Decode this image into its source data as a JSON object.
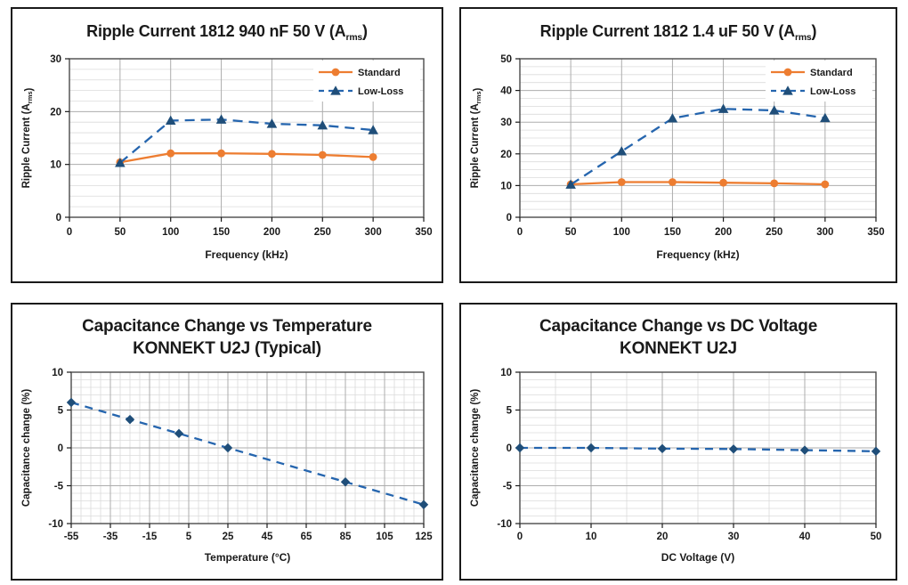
{
  "page": {
    "background": "#ffffff"
  },
  "colors": {
    "text": "#1a1a1a",
    "panel_border": "#1a1a1a",
    "grid_minor": "#dbdbdb",
    "grid_major": "#adadad",
    "plot_border": "#4a4a4a",
    "standard_orange": "#ED7D31",
    "lowloss_blue_line": "#2565AE",
    "lowloss_blue_marker": "#1F4E79",
    "diamond_navy": "#1F4E79"
  },
  "chart_data": [
    {
      "id": "ripple-current-940nf",
      "type": "line",
      "title_lines": [
        [
          {
            "t": "Ripple Current 1812 940 nF 50 V (A"
          },
          {
            "t": "rms",
            "sub": true
          },
          {
            "t": ")"
          }
        ]
      ],
      "xlabel": "Frequency (kHz)",
      "ylabel_segments": [
        {
          "t": "Ripple Current (A"
        },
        {
          "t": "rms",
          "sub": true
        },
        {
          "t": ")"
        }
      ],
      "xlim": [
        0,
        350
      ],
      "ylim": [
        0,
        30
      ],
      "xticks": [
        0,
        50,
        100,
        150,
        200,
        250,
        300,
        350
      ],
      "yticks": [
        0,
        10,
        20,
        30
      ],
      "x_minor_step": null,
      "y_minor_step": 2,
      "grid": true,
      "legend": true,
      "legend_position": "top-right",
      "x": [
        50,
        100,
        150,
        200,
        250,
        300
      ],
      "series": [
        {
          "name": "Standard",
          "values": [
            10.4,
            12.1,
            12.1,
            12.0,
            11.8,
            11.4
          ],
          "color": "#ED7D31",
          "marker": "circle",
          "marker_color": "#ED7D31",
          "dash": null
        },
        {
          "name": "Low-Loss",
          "values": [
            10.3,
            18.3,
            18.5,
            17.7,
            17.4,
            16.5
          ],
          "color": "#2565AE",
          "marker": "triangle",
          "marker_color": "#1F4E79",
          "dash": "11 7"
        }
      ]
    },
    {
      "id": "ripple-current-1p4uf",
      "type": "line",
      "title_lines": [
        [
          {
            "t": "Ripple Current 1812 1.4 uF 50 V (A"
          },
          {
            "t": "rms",
            "sub": true
          },
          {
            "t": ")"
          }
        ]
      ],
      "xlabel": "Frequency (kHz)",
      "ylabel_segments": [
        {
          "t": "Ripple Current (A"
        },
        {
          "t": "rms",
          "sub": true
        },
        {
          "t": ")"
        }
      ],
      "xlim": [
        0,
        350
      ],
      "ylim": [
        0,
        50
      ],
      "xticks": [
        0,
        50,
        100,
        150,
        200,
        250,
        300,
        350
      ],
      "yticks": [
        0,
        10,
        20,
        30,
        40,
        50
      ],
      "x_minor_step": null,
      "y_minor_step": 2.5,
      "grid": true,
      "legend": true,
      "legend_position": "top-right",
      "x": [
        50,
        100,
        150,
        200,
        250,
        300
      ],
      "series": [
        {
          "name": "Standard",
          "values": [
            10.4,
            11.1,
            11.1,
            10.9,
            10.7,
            10.4
          ],
          "color": "#ED7D31",
          "marker": "circle",
          "marker_color": "#ED7D31",
          "dash": null
        },
        {
          "name": "Low-Loss",
          "values": [
            10.3,
            20.8,
            31.2,
            34.2,
            33.7,
            31.3
          ],
          "color": "#2565AE",
          "marker": "triangle",
          "marker_color": "#1F4E79",
          "dash": "11 7"
        }
      ]
    },
    {
      "id": "cap-change-vs-temperature",
      "type": "line",
      "title_lines": [
        [
          {
            "t": "Capacitance Change vs Temperature"
          }
        ],
        [
          {
            "t": "KONNEKT U2J (Typical)"
          }
        ]
      ],
      "xlabel": "Temperature (°C)",
      "ylabel_segments": [
        {
          "t": "Capacitance change (%)"
        }
      ],
      "xlim": [
        -55,
        125
      ],
      "ylim": [
        -10,
        10
      ],
      "xticks": [
        -55,
        -35,
        -15,
        5,
        25,
        45,
        65,
        85,
        105,
        125
      ],
      "yticks": [
        -10,
        -5,
        0,
        5,
        10
      ],
      "x_minor_step": 5,
      "y_minor_step": 1,
      "grid": true,
      "legend": false,
      "x": [
        -55,
        -25,
        0,
        25,
        85,
        125
      ],
      "series": [
        {
          "name": "",
          "values": [
            6.0,
            3.75,
            1.9,
            0.0,
            -4.5,
            -7.5
          ],
          "color": "#2565AE",
          "marker": "diamond",
          "marker_color": "#1F4E79",
          "dash": "9 7"
        }
      ]
    },
    {
      "id": "cap-change-vs-dc-voltage",
      "type": "line",
      "title_lines": [
        [
          {
            "t": "Capacitance Change vs DC Voltage"
          }
        ],
        [
          {
            "t": "KONNEKT U2J"
          }
        ]
      ],
      "xlabel": "DC Voltage (V)",
      "ylabel_segments": [
        {
          "t": "Capacitance change (%)"
        }
      ],
      "xlim": [
        0,
        50
      ],
      "ylim": [
        -10,
        10
      ],
      "xticks": [
        0,
        10,
        20,
        30,
        40,
        50
      ],
      "yticks": [
        -10,
        -5,
        0,
        5,
        10
      ],
      "x_minor_step": 5,
      "y_minor_step": 1,
      "grid": true,
      "legend": false,
      "x": [
        0,
        10,
        20,
        30,
        40,
        50
      ],
      "series": [
        {
          "name": "",
          "values": [
            0.0,
            0.0,
            -0.1,
            -0.15,
            -0.3,
            -0.45
          ],
          "color": "#2565AE",
          "marker": "diamond",
          "marker_color": "#1F4E79",
          "dash": "9 7"
        }
      ]
    }
  ]
}
